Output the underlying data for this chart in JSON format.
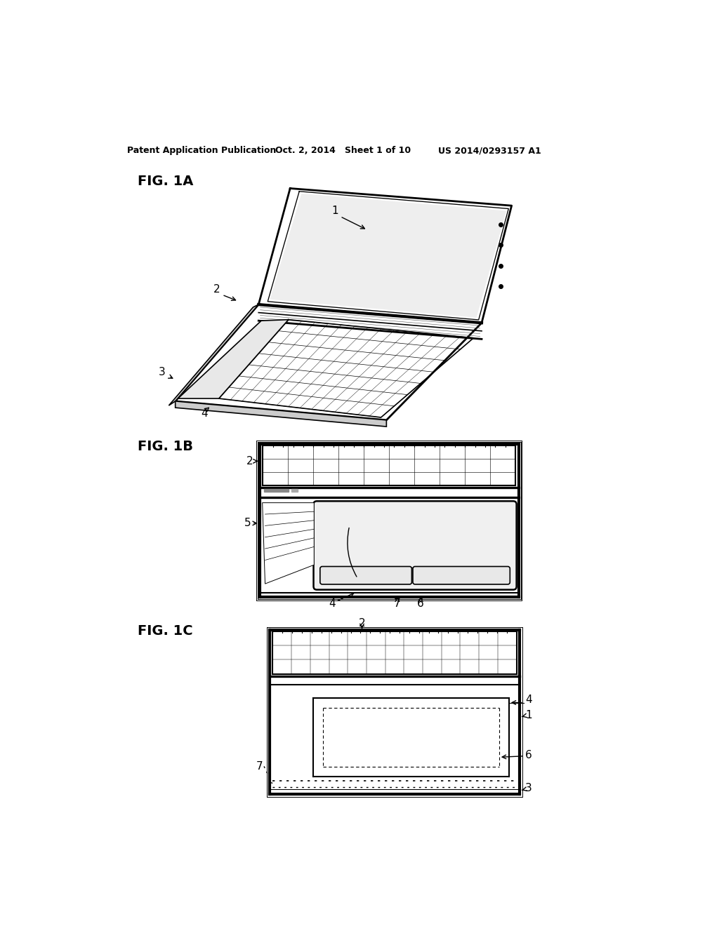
{
  "bg_color": "#ffffff",
  "header_left": "Patent Application Publication",
  "header_mid": "Oct. 2, 2014   Sheet 1 of 10",
  "header_right": "US 2014/0293157 A1",
  "fig1a_label": "FIG. 1A",
  "fig1b_label": "FIG. 1B",
  "fig1c_label": "FIG. 1C"
}
